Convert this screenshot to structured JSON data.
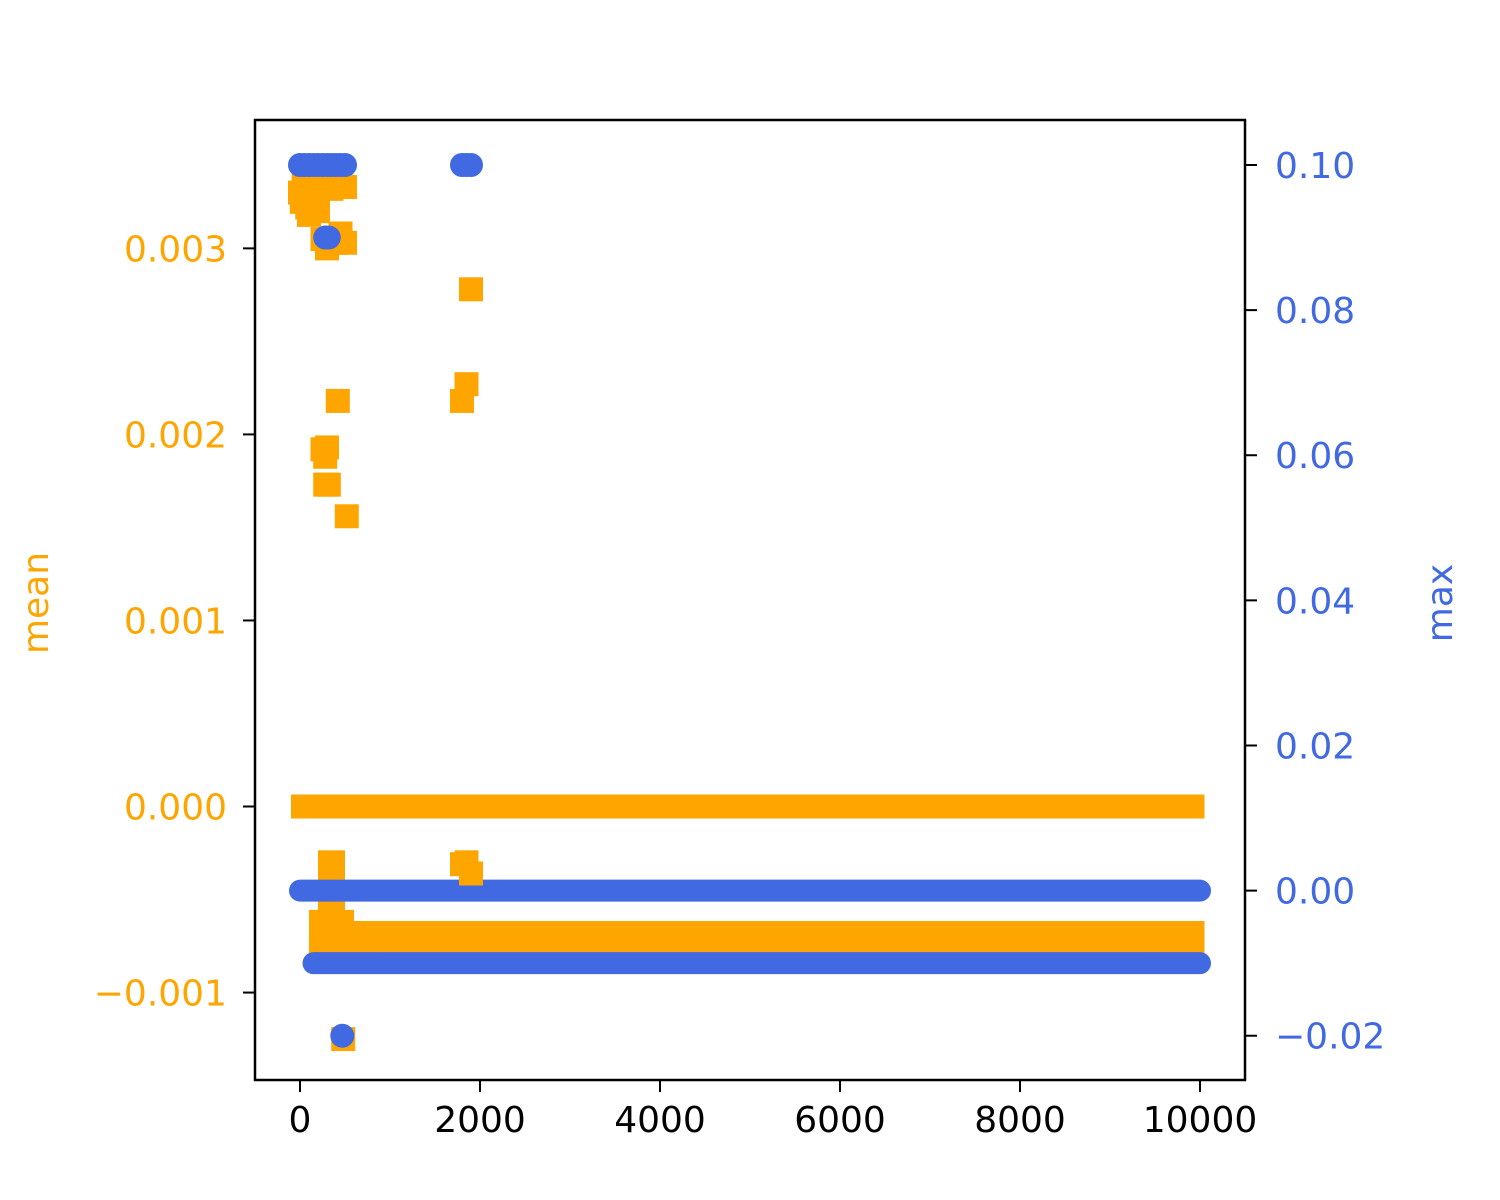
{
  "chart_data": {
    "type": "scatter",
    "title": "",
    "xlabel": "",
    "xlim": [
      -500,
      10500
    ],
    "xticks": [
      0,
      2000,
      4000,
      6000,
      8000,
      10000
    ],
    "xtick_labels": [
      "0",
      "2000",
      "4000",
      "6000",
      "8000",
      "10000"
    ],
    "left_axis": {
      "label": "mean",
      "color": "#FFA500",
      "ylim": [
        -0.00147,
        0.00369
      ],
      "ticks": [
        -0.001,
        0.0,
        0.001,
        0.002,
        0.003
      ],
      "tick_labels": [
        "−0.001",
        "0.000",
        "0.001",
        "0.002",
        "0.003"
      ]
    },
    "right_axis": {
      "label": "max",
      "color": "#4169E1",
      "ylim": [
        -0.0261,
        0.1062
      ],
      "ticks": [
        -0.02,
        0.0,
        0.02,
        0.04,
        0.06,
        0.08,
        0.1
      ],
      "tick_labels": [
        "−0.02",
        "0.00",
        "0.02",
        "0.04",
        "0.06",
        "0.08",
        "0.10"
      ]
    },
    "series": [
      {
        "axis": "left",
        "marker": "square",
        "color": "#FFA500",
        "x_start": 0,
        "x_end": 10000,
        "x_step": 10,
        "points": [
          [
            0,
            0.0033
          ],
          [
            20,
            0.00325
          ],
          [
            40,
            0.00335
          ],
          [
            60,
            0.0033
          ],
          [
            80,
            0.00322
          ],
          [
            100,
            0.00318
          ],
          [
            120,
            0.00325
          ],
          [
            150,
            0.00332
          ],
          [
            180,
            0.00328
          ],
          [
            200,
            0.0032
          ],
          [
            220,
            0.00335
          ],
          [
            250,
            0.00338
          ],
          [
            300,
            0.0034
          ],
          [
            350,
            0.00332
          ],
          [
            400,
            0.00338
          ],
          [
            450,
            0.00335
          ],
          [
            500,
            0.00333
          ],
          [
            250,
            0.00305
          ],
          [
            300,
            0.003
          ],
          [
            350,
            0.00305
          ],
          [
            400,
            0.00303
          ],
          [
            450,
            0.00308
          ],
          [
            500,
            0.00303
          ],
          [
            250,
            0.00192
          ],
          [
            280,
            0.00188
          ],
          [
            300,
            0.00193
          ],
          [
            280,
            0.00173
          ],
          [
            320,
            0.00173
          ],
          [
            420,
            0.00218
          ],
          [
            520,
            0.00156
          ],
          [
            1800,
            0.00218
          ],
          [
            1850,
            0.00227
          ],
          [
            1900,
            0.00278
          ],
          [
            480,
            -0.00125
          ],
          [
            1800,
            -0.00031
          ],
          [
            1850,
            -0.0003
          ],
          [
            1900,
            -0.00036
          ]
        ],
        "bands": [
          {
            "x_from": -100,
            "x_to": 10050,
            "y": 0.0
          },
          {
            "x_from": 100,
            "x_to": 10050,
            "y": -0.00068
          },
          {
            "x_from": 100,
            "x_to": 10050,
            "y": -0.00072
          },
          {
            "x_from": 100,
            "x_to": 10050,
            "y": -0.00074
          },
          {
            "x_from": 200,
            "x_to": 500,
            "y": -0.0003
          },
          {
            "x_from": 200,
            "x_to": 500,
            "y": -0.0004
          },
          {
            "x_from": 200,
            "x_to": 500,
            "y": -0.0005
          },
          {
            "x_from": 100,
            "x_to": 600,
            "y": -0.00062
          }
        ]
      },
      {
        "axis": "right",
        "marker": "circle",
        "color": "#4169E1",
        "points": [
          [
            0,
            0.1
          ],
          [
            50,
            0.1
          ],
          [
            100,
            0.1
          ],
          [
            150,
            0.1
          ],
          [
            200,
            0.1
          ],
          [
            250,
            0.1
          ],
          [
            300,
            0.1
          ],
          [
            350,
            0.1
          ],
          [
            400,
            0.1
          ],
          [
            450,
            0.1
          ],
          [
            500,
            0.1
          ],
          [
            1800,
            0.1
          ],
          [
            1850,
            0.1
          ],
          [
            1900,
            0.1
          ],
          [
            280,
            0.09
          ],
          [
            320,
            0.09
          ],
          [
            470,
            -0.02
          ]
        ],
        "bands": [
          {
            "x_from": 0,
            "x_to": 10000,
            "y": 0.0
          },
          {
            "x_from": 150,
            "x_to": 10000,
            "y": -0.01
          }
        ]
      }
    ],
    "grid": false,
    "legend": "none"
  }
}
